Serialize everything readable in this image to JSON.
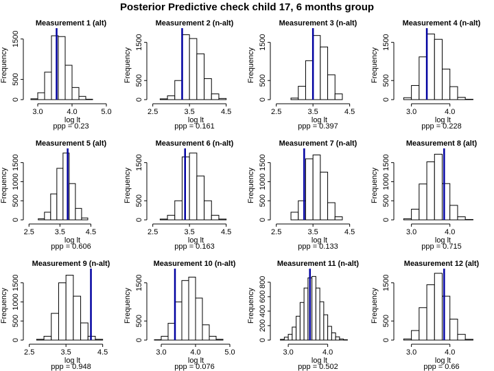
{
  "title": "Posterior Predictive check child 17, 6 months group",
  "colors": {
    "observed_line": "#0000a0",
    "bars": "#ffffff",
    "bar_stroke": "#000000"
  },
  "chart_data": [
    {
      "type": "bar",
      "title": "Measurement  1 (alt)",
      "xlabel": "log lt",
      "ylabel": "Frequency",
      "bin_edges": [
        2.8,
        3.0,
        3.2,
        3.4,
        3.6,
        3.8,
        4.0,
        4.2,
        4.4,
        4.6
      ],
      "values": [
        20,
        170,
        680,
        1580,
        1560,
        850,
        300,
        80,
        10
      ],
      "xlim": [
        2.7,
        5.0
      ],
      "ylim": [
        0,
        1700
      ],
      "xticks": [
        3.0,
        4.0,
        5.0
      ],
      "xtick_labels": [
        "3.0",
        "4.0",
        "5.0"
      ],
      "yticks": [
        0,
        500,
        1500
      ],
      "ytick_labels": [
        "0",
        "500",
        "1500"
      ],
      "observed": 3.55,
      "ppp_label": "ppp = 0.23"
    },
    {
      "type": "bar",
      "title": "Measurement  2 (n-alt)",
      "xlabel": "log lt",
      "ylabel": "Frequency",
      "bin_edges": [
        2.7,
        2.9,
        3.1,
        3.3,
        3.5,
        3.7,
        3.9,
        4.1,
        4.3,
        4.5
      ],
      "values": [
        20,
        100,
        500,
        1700,
        1600,
        1200,
        550,
        150,
        30
      ],
      "xlim": [
        2.45,
        4.6
      ],
      "ylim": [
        0,
        1800
      ],
      "xticks": [
        2.5,
        3.5,
        4.5
      ],
      "xtick_labels": [
        "2.5",
        "3.5",
        "4.5"
      ],
      "yticks": [
        0,
        500,
        1500
      ],
      "ytick_labels": [
        "0",
        "500",
        "1500"
      ],
      "observed": 3.3,
      "ppp_label": "ppp = 0.161"
    },
    {
      "type": "bar",
      "title": "Measurement  3 (n-alt)",
      "xlabel": "log lt",
      "ylabel": "Frequency",
      "bin_edges": [
        2.9,
        3.1,
        3.3,
        3.5,
        3.7,
        3.9,
        4.1,
        4.3
      ],
      "values": [
        40,
        350,
        1020,
        1680,
        1380,
        650,
        150
      ],
      "xlim": [
        2.45,
        4.6
      ],
      "ylim": [
        0,
        1800
      ],
      "xticks": [
        2.5,
        3.5,
        4.5
      ],
      "xtick_labels": [
        "2.5",
        "3.5",
        "4.5"
      ],
      "yticks": [
        0,
        500,
        1500
      ],
      "ytick_labels": [
        "0",
        "500",
        "1500"
      ],
      "observed": 3.5,
      "ppp_label": "ppp = 0.397"
    },
    {
      "type": "bar",
      "title": "Measurement  4 (n-alt)",
      "xlabel": "log lt",
      "ylabel": "Frequency",
      "bin_edges": [
        2.8,
        3.0,
        3.2,
        3.4,
        3.6,
        3.8,
        4.0,
        4.2,
        4.4,
        4.6
      ],
      "values": [
        50,
        370,
        1120,
        1720,
        1580,
        800,
        340,
        60,
        10
      ],
      "xlim": [
        2.65,
        4.7
      ],
      "ylim": [
        0,
        1800
      ],
      "xticks": [
        3.0,
        4.0
      ],
      "xtick_labels": [
        "3.0",
        "4.0"
      ],
      "yticks": [
        0,
        500,
        1500
      ],
      "ytick_labels": [
        "0",
        "500",
        "1500"
      ],
      "observed": 3.4,
      "ppp_label": "ppp = 0.228"
    },
    {
      "type": "bar",
      "title": "Measurement  5 (alt)",
      "xlabel": "log lt",
      "ylabel": "Frequency",
      "bin_edges": [
        2.8,
        3.0,
        3.2,
        3.4,
        3.6,
        3.8,
        4.0,
        4.2,
        4.4
      ],
      "values": [
        30,
        200,
        680,
        1350,
        1750,
        950,
        300,
        50
      ],
      "xlim": [
        2.45,
        5.0
      ],
      "ylim": [
        0,
        1800
      ],
      "xticks": [
        2.5,
        3.5,
        4.5
      ],
      "xtick_labels": [
        "2.5",
        "3.5",
        "4.5"
      ],
      "yticks": [
        0,
        500,
        1000,
        1500
      ],
      "ytick_labels": [
        "0",
        "500",
        "1000",
        "1500"
      ],
      "observed": 3.75,
      "ppp_label": "ppp = 0.606"
    },
    {
      "type": "bar",
      "title": "Measurement  6 (n-alt)",
      "xlabel": "log lt",
      "ylabel": "Frequency",
      "bin_edges": [
        2.7,
        2.9,
        3.1,
        3.3,
        3.5,
        3.7,
        3.9,
        4.1,
        4.3,
        4.5
      ],
      "values": [
        20,
        120,
        500,
        1650,
        1750,
        1150,
        500,
        120,
        20
      ],
      "xlim": [
        2.45,
        4.6
      ],
      "ylim": [
        0,
        1800
      ],
      "xticks": [
        2.5,
        3.5,
        4.5
      ],
      "xtick_labels": [
        "2.5",
        "3.5",
        "4.5"
      ],
      "yticks": [
        0,
        500,
        1500
      ],
      "ytick_labels": [
        "0",
        "500",
        "1500"
      ],
      "observed": 3.38,
      "ppp_label": "ppp = 0.163"
    },
    {
      "type": "bar",
      "title": "Measurement  7 (n-alt)",
      "xlabel": "log lt",
      "ylabel": "Frequency",
      "bin_edges": [
        2.9,
        3.1,
        3.3,
        3.5,
        3.7,
        3.9,
        4.1,
        4.3
      ],
      "values": [
        200,
        500,
        1600,
        1700,
        1250,
        450,
        80
      ],
      "xlim": [
        2.45,
        4.6
      ],
      "ylim": [
        0,
        1800
      ],
      "xticks": [
        2.5,
        3.5,
        4.5
      ],
      "xtick_labels": [
        "2.5",
        "3.5",
        "4.5"
      ],
      "yticks": [
        0,
        500,
        1000,
        1500
      ],
      "ytick_labels": [
        "0",
        "500",
        "1000",
        "1500"
      ],
      "observed": 3.26,
      "ppp_label": "ppp = 0.133"
    },
    {
      "type": "bar",
      "title": "Measurement  8 (alt)",
      "xlabel": "log lt",
      "ylabel": "Frequency",
      "bin_edges": [
        2.8,
        3.0,
        3.2,
        3.4,
        3.6,
        3.8,
        4.0,
        4.2,
        4.4,
        4.6
      ],
      "values": [
        30,
        280,
        940,
        1520,
        1720,
        950,
        380,
        80,
        10
      ],
      "xlim": [
        2.65,
        4.7
      ],
      "ylim": [
        0,
        1800
      ],
      "xticks": [
        3.0,
        4.0
      ],
      "xtick_labels": [
        "3.0",
        "4.0"
      ],
      "yticks": [
        0,
        500,
        1000,
        1500
      ],
      "ytick_labels": [
        "0",
        "500",
        "1000",
        "1500"
      ],
      "observed": 3.85,
      "ppp_label": "ppp = 0.715"
    },
    {
      "type": "bar",
      "title": "Measurement  9 (n-alt)",
      "xlabel": "log lt",
      "ylabel": "Frequency",
      "bin_edges": [
        2.7,
        2.9,
        3.1,
        3.3,
        3.5,
        3.7,
        3.9,
        4.1,
        4.3,
        4.5
      ],
      "values": [
        20,
        100,
        700,
        1500,
        1700,
        1150,
        450,
        100,
        20
      ],
      "xlim": [
        2.45,
        4.6
      ],
      "ylim": [
        0,
        1800
      ],
      "xticks": [
        2.5,
        3.5,
        4.5
      ],
      "xtick_labels": [
        "2.5",
        "3.5",
        "4.5"
      ],
      "yticks": [
        0,
        500,
        1000,
        1500
      ],
      "ytick_labels": [
        "0",
        "500",
        "1000",
        "1500"
      ],
      "observed": 4.18,
      "ppp_label": "ppp = 0.948"
    },
    {
      "type": "bar",
      "title": "Measurement  10 (n-alt)",
      "xlabel": "log lt",
      "ylabel": "Frequency",
      "bin_edges": [
        2.8,
        3.0,
        3.2,
        3.4,
        3.6,
        3.8,
        4.0,
        4.2,
        4.4,
        4.6,
        4.8
      ],
      "values": [
        10,
        100,
        440,
        1000,
        1560,
        1650,
        1100,
        400,
        100,
        20
      ],
      "xlim": [
        2.7,
        5.0
      ],
      "ylim": [
        0,
        1800
      ],
      "xticks": [
        3.0,
        4.0,
        5.0
      ],
      "xtick_labels": [
        "3.0",
        "4.0",
        "5.0"
      ],
      "yticks": [
        0,
        500,
        1500
      ],
      "ytick_labels": [
        "0",
        "500",
        "1500"
      ],
      "observed": 3.4,
      "ppp_label": "ppp = 0.076"
    },
    {
      "type": "bar",
      "title": "Measurement  11 (n-alt)",
      "xlabel": "log lt",
      "ylabel": "Frequency",
      "bin_edges": [
        2.8,
        2.9,
        3.0,
        3.1,
        3.2,
        3.3,
        3.4,
        3.5,
        3.6,
        3.7,
        3.8,
        3.9,
        4.0,
        4.1,
        4.2,
        4.3,
        4.4,
        4.5
      ],
      "values": [
        10,
        40,
        80,
        180,
        330,
        520,
        720,
        860,
        880,
        720,
        530,
        350,
        190,
        100,
        45,
        15,
        5
      ],
      "xlim": [
        2.65,
        4.65
      ],
      "ylim": [
        0,
        950
      ],
      "xticks": [
        3.0,
        4.0
      ],
      "xtick_labels": [
        "3.0",
        "4.0"
      ],
      "yticks": [
        0,
        200,
        400,
        600,
        800
      ],
      "ytick_labels": [
        "0",
        "200",
        "400",
        "600",
        "800"
      ],
      "observed": 3.55,
      "ppp_label": "ppp = 0.502"
    },
    {
      "type": "bar",
      "title": "Measurement  12 (alt)",
      "xlabel": "log lt",
      "ylabel": "Frequency",
      "bin_edges": [
        2.8,
        3.0,
        3.2,
        3.4,
        3.6,
        3.8,
        4.0,
        4.2,
        4.4,
        4.6
      ],
      "values": [
        30,
        250,
        850,
        1450,
        1750,
        1150,
        550,
        150,
        20
      ],
      "xlim": [
        2.65,
        4.7
      ],
      "ylim": [
        0,
        1800
      ],
      "xticks": [
        3.0,
        4.0
      ],
      "xtick_labels": [
        "3.0",
        "4.0"
      ],
      "yticks": [
        0,
        500,
        1500
      ],
      "ytick_labels": [
        "0",
        "500",
        "1500"
      ],
      "observed": 3.85,
      "ppp_label": "ppp = 0.66"
    }
  ]
}
